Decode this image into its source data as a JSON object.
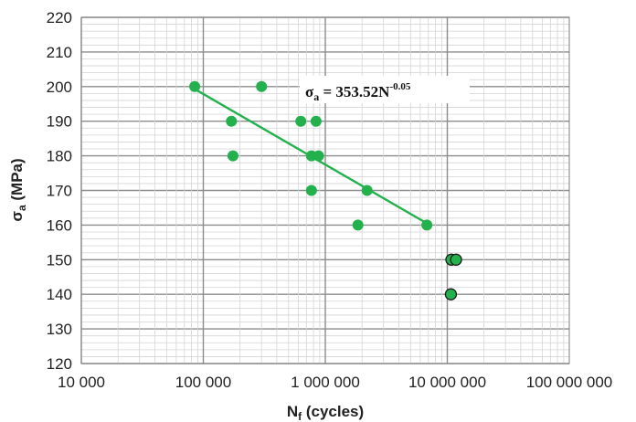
{
  "chart_data": {
    "type": "scatter",
    "x_scale": "log",
    "xlim": [
      10000,
      100000000
    ],
    "ylim": [
      120,
      220
    ],
    "grid": true,
    "xlabel": {
      "main": "N",
      "sub": "f",
      "rest": " (cycles)"
    },
    "ylabel": {
      "main": "σ",
      "sub": "a",
      "rest": " (MPa)"
    },
    "x_ticks": [
      {
        "value": 10000,
        "label": "10 000"
      },
      {
        "value": 100000,
        "label": "100 000"
      },
      {
        "value": 1000000,
        "label": "1 000 000"
      },
      {
        "value": 10000000,
        "label": "10 000 000"
      },
      {
        "value": 100000000,
        "label": "100 000 000"
      }
    ],
    "y_ticks": [
      {
        "value": 120,
        "label": "120"
      },
      {
        "value": 130,
        "label": "130"
      },
      {
        "value": 140,
        "label": "140"
      },
      {
        "value": 150,
        "label": "150"
      },
      {
        "value": 160,
        "label": "160"
      },
      {
        "value": 170,
        "label": "170"
      },
      {
        "value": 180,
        "label": "180"
      },
      {
        "value": 190,
        "label": "190"
      },
      {
        "value": 200,
        "label": "200"
      },
      {
        "value": 210,
        "label": "210"
      },
      {
        "value": 220,
        "label": "220"
      }
    ],
    "series": [
      {
        "kind": "failure",
        "color": "#22b14c",
        "points": [
          {
            "x": 85000,
            "y": 200
          },
          {
            "x": 300000,
            "y": 200
          },
          {
            "x": 170000,
            "y": 190
          },
          {
            "x": 630000,
            "y": 190
          },
          {
            "x": 840000,
            "y": 190
          },
          {
            "x": 175000,
            "y": 180
          },
          {
            "x": 770000,
            "y": 180
          },
          {
            "x": 880000,
            "y": 180
          },
          {
            "x": 770000,
            "y": 170
          },
          {
            "x": 2200000,
            "y": 170
          },
          {
            "x": 1850000,
            "y": 160
          },
          {
            "x": 6800000,
            "y": 160
          }
        ]
      },
      {
        "kind": "runout",
        "color": "#22b14c",
        "stroke": "#1a1a1a",
        "points": [
          {
            "x": 10800000,
            "y": 150
          },
          {
            "x": 11800000,
            "y": 150
          },
          {
            "x": 10700000,
            "y": 140
          }
        ]
      }
    ],
    "trendline": {
      "color": "#22b14c",
      "from": {
        "x": 85000,
        "y": 199.3
      },
      "to": {
        "x": 6800000,
        "y": 160.5
      }
    },
    "equation": {
      "lhs": "σ",
      "lhs_sub": "a",
      "mid": " = 353.52N",
      "exp": "-0.05"
    }
  }
}
